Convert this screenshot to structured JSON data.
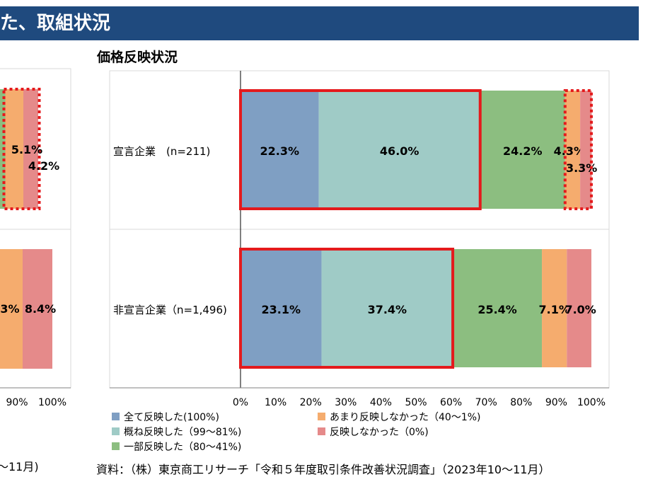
{
  "header": {
    "title": "た、取組状況"
  },
  "chart_data": [
    {
      "type": "bar",
      "orientation": "horizontal",
      "stacked": true,
      "partial": "cropped at left edge",
      "categories": [
        "",
        ""
      ],
      "series": [
        {
          "name": "全て反映した(100%)",
          "color": "#7f9fc3",
          "values": [
            null,
            null
          ]
        },
        {
          "name": "概ね反映した（99～81%)",
          "color": "#9fcbc6",
          "values": [
            null,
            null
          ]
        },
        {
          "name": "一部反映した（80～41%)",
          "color": "#8cbe80",
          "values": [
            null,
            null
          ]
        },
        {
          "name": "あまり反映しなかった（40～1%)",
          "color": "#f5ac6e",
          "values": [
            5.1,
            null
          ]
        },
        {
          "name": "反映しなかった（0%)",
          "color": "#e58a8a",
          "values": [
            4.2,
            8.4
          ]
        }
      ],
      "partial_labels": [
        "5.1%",
        "4.2%",
        "3%",
        "8.4%"
      ],
      "xticks": [
        "90%",
        "100%"
      ],
      "source_fragment": "～11月)"
    },
    {
      "type": "bar",
      "orientation": "horizontal",
      "stacked": true,
      "title": "価格反映状況",
      "categories": [
        "宣言企業　(n=211)",
        "非宣言企業（n=1,496)"
      ],
      "xlim": [
        0,
        100
      ],
      "xticks": [
        "0%",
        "10%",
        "20%",
        "30%",
        "40%",
        "50%",
        "60%",
        "70%",
        "80%",
        "90%",
        "100%"
      ],
      "legend_position": "bottom",
      "series": [
        {
          "name": "全て反映した(100%)",
          "color": "#7f9fc3",
          "values": [
            22.3,
            23.1
          ]
        },
        {
          "name": "概ね反映した（99～81%)",
          "color": "#9fcbc6",
          "values": [
            46.0,
            37.4
          ]
        },
        {
          "name": "一部反映した（80～41%)",
          "color": "#8cbe80",
          "values": [
            24.2,
            25.4
          ]
        },
        {
          "name": "あまり反映しなかった（40～1%)",
          "color": "#f5ac6e",
          "values": [
            4.3,
            7.1
          ]
        },
        {
          "name": "反映しなかった（0%)",
          "color": "#e58a8a",
          "values": [
            3.3,
            7.0
          ]
        }
      ],
      "data_labels": [
        [
          "22.3%",
          "46.0%",
          "24.2%",
          "4.3%",
          "3.3%"
        ],
        [
          "23.1%",
          "37.4%",
          "25.4%",
          "7.1%",
          "7.0%"
        ]
      ],
      "highlights": [
        {
          "category": 0,
          "from": 0,
          "to": 68.3,
          "style": "solid-red"
        },
        {
          "category": 0,
          "from": 92.5,
          "to": 100,
          "style": "dotted-red"
        },
        {
          "category": 1,
          "from": 0,
          "to": 60.5,
          "style": "solid-red"
        }
      ],
      "source": "資料：（株）東京商工リサーチ「令和５年度取引条件改善状況調査」（2023年10～11月）"
    }
  ]
}
